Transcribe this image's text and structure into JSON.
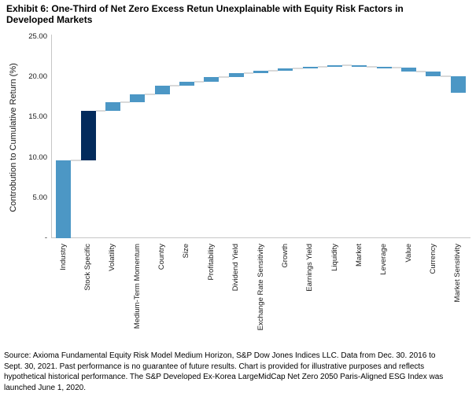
{
  "title": {
    "line1": "Exhibit 6: One-Third of Net Zero Excess Retun Unexplainable with Equity Risk Factors in",
    "line2": "Developed Markets"
  },
  "chart_data": {
    "type": "bar",
    "subtype": "waterfall",
    "title": "Exhibit 6: One-Third of Net Zero Excess Retun Unexplainable with Equity Risk Factors in Developed Markets",
    "xlabel": "",
    "ylabel": "Controbution to Cumulative Return (%)",
    "ylim": [
      0,
      25
    ],
    "grid": false,
    "legend": false,
    "categories": [
      "Industry",
      "Stock Specific",
      "Volatility",
      "Medium-Term Momentum",
      "Country",
      "Size",
      "Profitability",
      "Dividend Yield",
      "Exchange Rate Sensitivity",
      "Growth",
      "Earnings Yield",
      "Liquidity",
      "Market",
      "Leverage",
      "Value",
      "Currency",
      "Market Sensitivity"
    ],
    "values": [
      9.7,
      6.1,
      1.1,
      1.0,
      1.0,
      0.5,
      0.6,
      0.5,
      0.3,
      0.3,
      0.2,
      0.15,
      -0.15,
      -0.1,
      -0.45,
      -0.6,
      -2.05
    ],
    "cumulative": [
      9.7,
      15.8,
      16.9,
      17.9,
      18.9,
      19.4,
      20.0,
      20.5,
      20.8,
      21.1,
      21.3,
      21.45,
      21.3,
      21.2,
      20.75,
      20.15,
      18.1
    ],
    "highlight_category": "Stock Specific",
    "highlight_index": 1,
    "y_ticks": [
      {
        "label": "25.00",
        "value": 25
      },
      {
        "label": "20.00",
        "value": 20
      },
      {
        "label": "15.00",
        "value": 15
      },
      {
        "label": "10.00",
        "value": 10
      },
      {
        "label": "5.00",
        "value": 5
      },
      {
        "label": "-",
        "value": 0
      }
    ],
    "colors": {
      "bar": "#4C97C5",
      "highlight": "#032B5C",
      "connector": "#D9D9D9",
      "axis_line": "#C6C6C6"
    }
  },
  "source": {
    "lines": [
      "Source: Axioma Fundamental Equity Risk Model Medium Horizon, S&P Dow Jones Indices LLC. Data from Dec. 30. 2016 to",
      "Sept. 30, 2021. Past performance is no guarantee of future results. Chart is provided for illustrative purposes and reflects",
      "hypothetical historical performance. The S&P Developed Ex-Korea LargeMidCap Net Zero 2050 Paris-Aligned ESG Index was",
      "launched June 1, 2020."
    ]
  }
}
